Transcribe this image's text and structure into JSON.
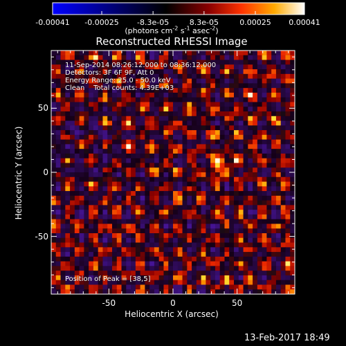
{
  "colorbar": {
    "tick_labels": [
      "-0.00041",
      "-0.00025",
      "-8.3e-05",
      "8.3e-05",
      "0.00025",
      "0.00041"
    ],
    "tick_values": [
      -0.00041,
      -0.00025,
      -8.3e-05,
      8.3e-05,
      0.00025,
      0.00041
    ],
    "range": [
      -0.00041,
      0.00041
    ],
    "units_prefix": "(photons cm",
    "units_exp1": "-2",
    "units_s": " s",
    "units_exp2": "-1",
    "units_asec": " asec",
    "units_exp3": "-2",
    "units_suffix": ")",
    "colors": [
      "#0000ff",
      "#000000",
      "#7a0000",
      "#ff6600",
      "#ffdd00",
      "#ffffff"
    ]
  },
  "chart_data": {
    "type": "heatmap",
    "title": "Reconstructed RHESSI Image",
    "xlabel": "Heliocentric X (arcsec)",
    "ylabel": "Heliocentric Y (arcsec)",
    "xlim": [
      -95,
      95
    ],
    "ylim": [
      -95,
      95
    ],
    "x_ticks": [
      -50,
      0,
      50
    ],
    "x_tick_labels": [
      "-50",
      "0",
      "50"
    ],
    "y_ticks": [
      -50,
      0,
      50
    ],
    "y_tick_labels": [
      "-50",
      "0",
      "50"
    ],
    "annotations": [
      "11-Sep-2014 08:26:12.000 to 08:36:12.000",
      "Detectors: 3F 6F 9F, Att 0",
      "Energy Range: 25.0 - 50.0 keV",
      "Clean    Total counts: 4.39E+03",
      "Position of Peak = [38,5]"
    ],
    "peak_position": [
      38,
      5
    ],
    "value_range": [
      -0.00041,
      0.00041
    ],
    "grid": false
  },
  "footer": {
    "timestamp": "13-Feb-2017 18:49"
  }
}
